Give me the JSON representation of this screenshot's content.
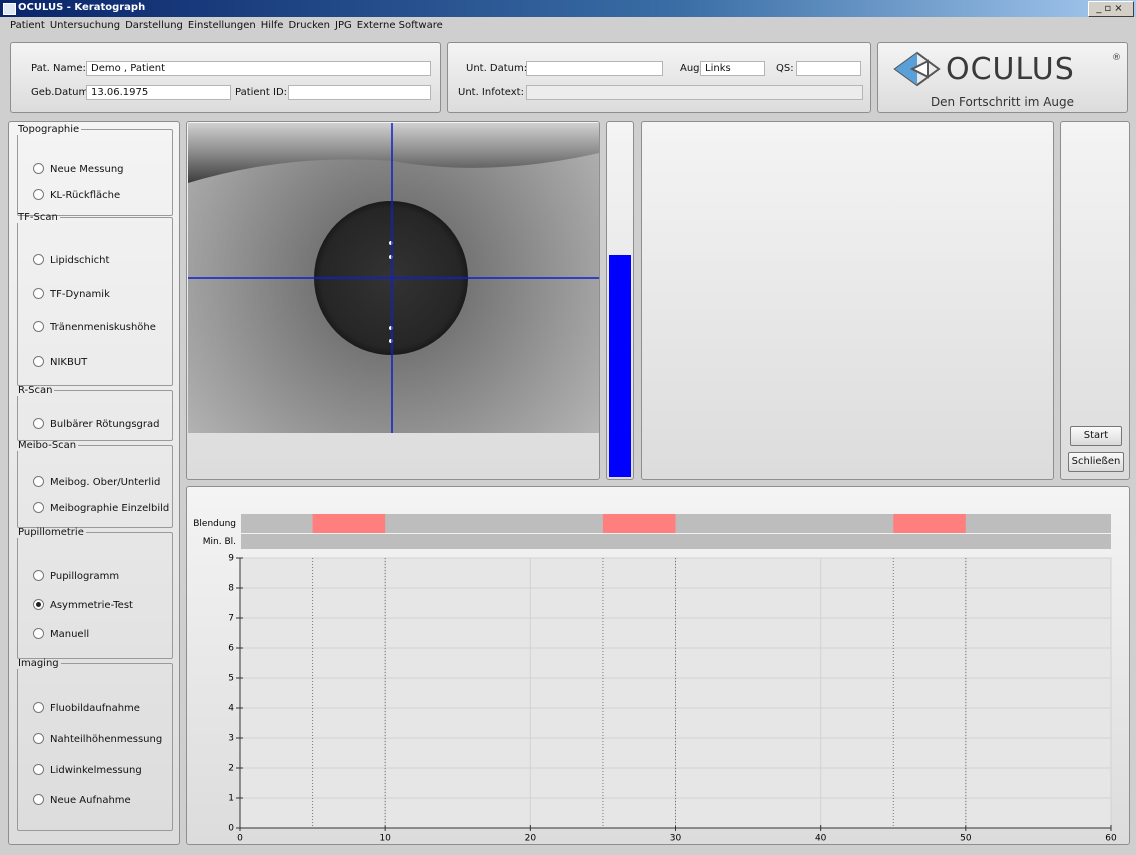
{
  "window": {
    "title": "OCULUS - Keratograph"
  },
  "menu": [
    "Patient",
    "Untersuchung",
    "Darstellung",
    "Einstellungen",
    "Hilfe",
    "Drucken",
    "JPG",
    "Externe Software"
  ],
  "patient": {
    "name_label": "Pat. Name:",
    "name": "Demo , Patient",
    "birth_label": "Geb.Datum:",
    "birth": "13.06.1975",
    "id_label": "Patient ID:"
  },
  "exam": {
    "date_label": "Unt. Datum:",
    "eye_label": "Auge:",
    "eye": "Links",
    "qs_label": "QS:",
    "info_label": "Unt. Infotext:"
  },
  "logo": {
    "brand": "OCULUS",
    "mark": "®",
    "slogan": "Den Fortschritt im Auge"
  },
  "sidebar": [
    {
      "title": "Topographie",
      "options": [
        "Neue Messung",
        "KL-Rückfläche"
      ]
    },
    {
      "title": "TF-Scan",
      "options": [
        "Lipidschicht",
        "TF-Dynamik",
        "Tränenmeniskushöhe",
        "NIKBUT"
      ]
    },
    {
      "title": "R-Scan",
      "options": [
        "Bulbärer Rötungsgrad"
      ]
    },
    {
      "title": "Meibo-Scan",
      "options": [
        "Meibog. Ober/Unterlid",
        "Meibographie Einzelbild"
      ]
    },
    {
      "title": "Pupillometrie",
      "options": [
        "Pupillogramm",
        "Asymmetrie-Test",
        "Manuell"
      ],
      "selected": 1
    },
    {
      "title": "Imaging",
      "options": [
        "Fluobildaufnahme",
        "Nahteilhöhenmessung",
        "Lidwinkelmessung",
        "Neue Aufnahme"
      ]
    }
  ],
  "buttons": [
    "Start",
    "Schließen"
  ],
  "chart_data": {
    "type": "timeline",
    "rows": [
      {
        "name": "Blendung",
        "color": "#ff7f7f",
        "intervals": [
          [
            5,
            10
          ],
          [
            25,
            30
          ],
          [
            45,
            50
          ]
        ]
      },
      {
        "name": "Min. Bl.",
        "intervals": []
      }
    ],
    "xlim": [
      0,
      60
    ],
    "xticks": [
      0,
      10,
      20,
      30,
      40,
      50,
      60
    ],
    "ylim": [
      0,
      9
    ],
    "yticks": [
      0,
      1,
      2,
      3,
      4,
      5,
      6,
      7,
      8,
      9
    ],
    "grid": true
  }
}
